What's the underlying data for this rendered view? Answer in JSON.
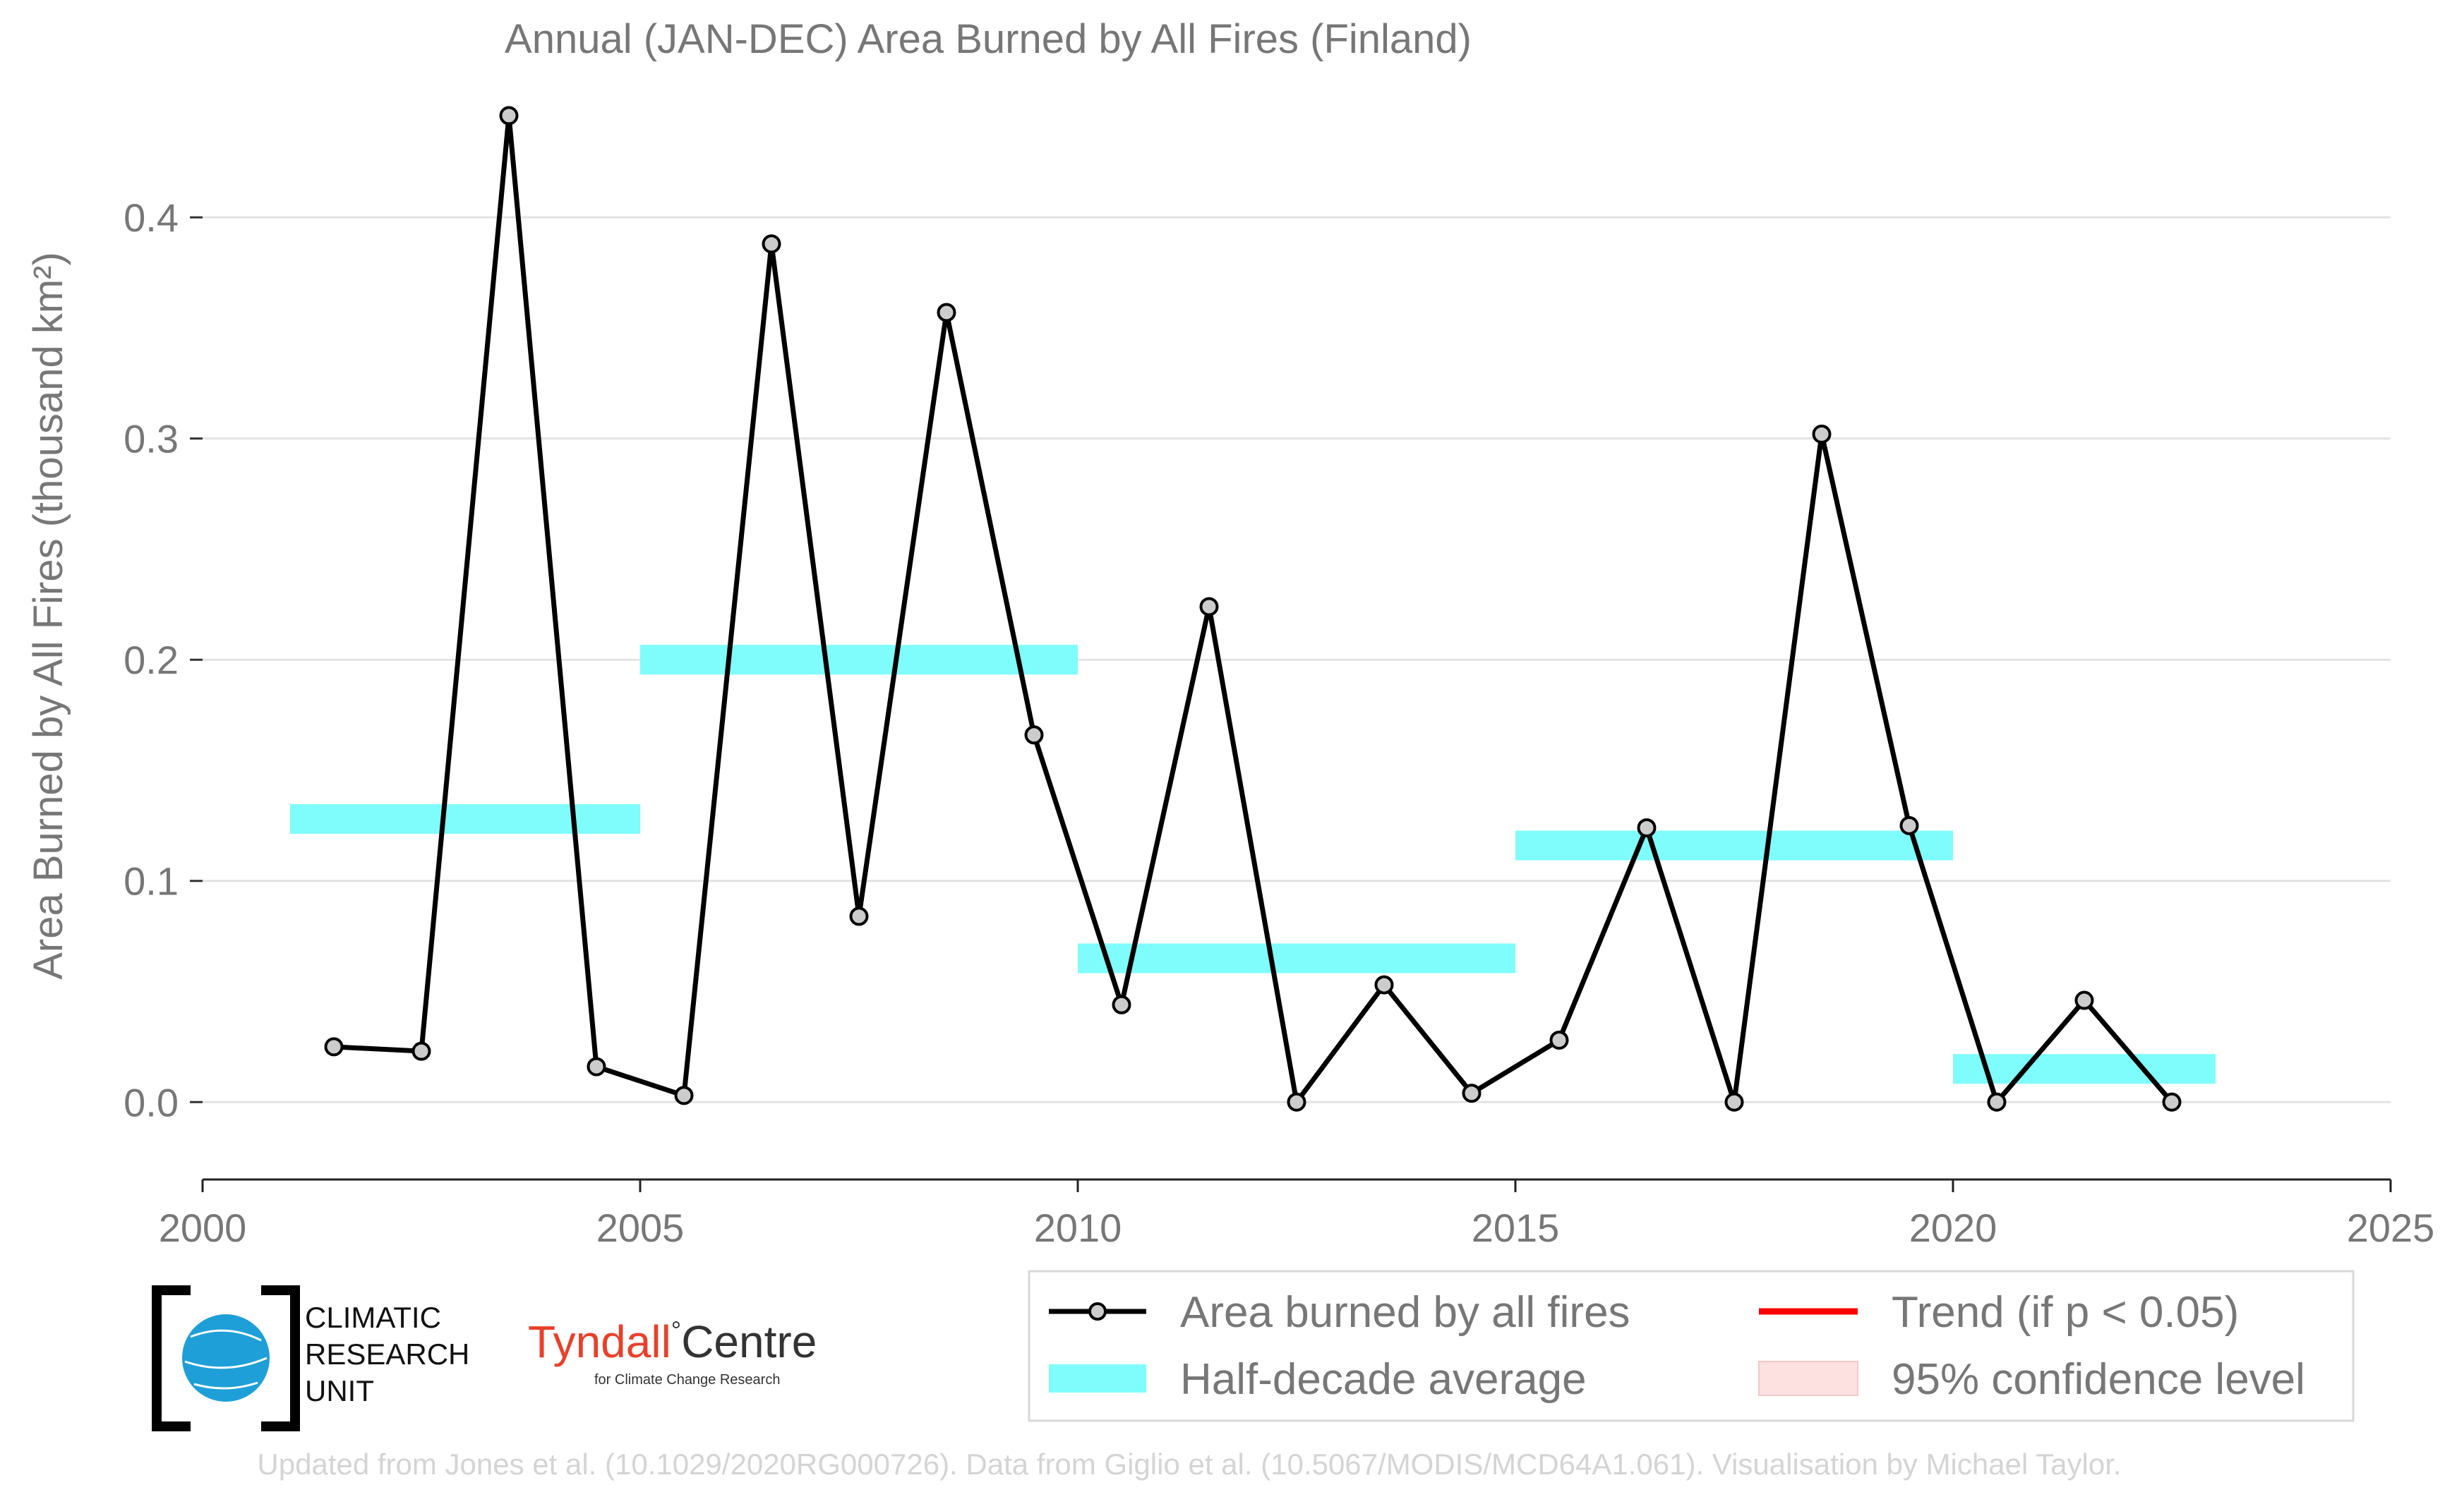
{
  "chart_data": {
    "type": "line",
    "title": "Annual (JAN-DEC) Area Burned by All Fires (Finland)",
    "ylabel": "Area Burned by All Fires (thousand km²)",
    "xlabel": "",
    "xlim": [
      2000,
      2025
    ],
    "ylim": [
      -0.035,
      0.46
    ],
    "x_ticks": [
      2000,
      2005,
      2010,
      2015,
      2020,
      2025
    ],
    "y_ticks": [
      0.0,
      0.1,
      0.2,
      0.3,
      0.4
    ],
    "x_tick_labels": [
      "2000",
      "2005",
      "2010",
      "2015",
      "2020",
      "2025"
    ],
    "y_tick_labels": [
      "0.0",
      "0.1",
      "0.2",
      "0.3",
      "0.4"
    ],
    "grid": "horizontal",
    "legend_position": "bottom-right",
    "series": [
      {
        "name": "Area burned by all fires",
        "type": "line",
        "color": "#000000",
        "x": [
          2001.5,
          2002.5,
          2003.5,
          2004.5,
          2005.5,
          2006.5,
          2007.5,
          2008.5,
          2009.5,
          2010.5,
          2011.5,
          2012.5,
          2013.5,
          2014.5,
          2015.5,
          2016.5,
          2017.5,
          2018.5,
          2019.5,
          2020.5,
          2021.5,
          2022.5
        ],
        "y": [
          0.025,
          0.023,
          0.446,
          0.016,
          0.003,
          0.388,
          0.084,
          0.357,
          0.166,
          0.044,
          0.224,
          0.0,
          0.053,
          0.004,
          0.028,
          0.124,
          0.0,
          0.302,
          0.125,
          0.0,
          0.046,
          0.0
        ]
      },
      {
        "name": "Half-decade average",
        "type": "segments",
        "color": "#7ffcfc",
        "segments": [
          {
            "x": [
              2001,
              2005
            ],
            "y": 0.128
          },
          {
            "x": [
              2005,
              2010
            ],
            "y": 0.2
          },
          {
            "x": [
              2010,
              2015
            ],
            "y": 0.065
          },
          {
            "x": [
              2015,
              2020
            ],
            "y": 0.116
          },
          {
            "x": [
              2020,
              2023
            ],
            "y": 0.015
          }
        ]
      },
      {
        "name": "Trend (if p < 0.05)",
        "type": "legend-only",
        "color": "#ff0000"
      },
      {
        "name": "95% confidence level",
        "type": "legend-only",
        "color": "#fde0e0"
      }
    ]
  },
  "legend": {
    "items": [
      {
        "label": "Area burned by all fires"
      },
      {
        "label": "Half-decade average"
      },
      {
        "label": "Trend (if p < 0.05)"
      },
      {
        "label": "95% confidence level"
      }
    ]
  },
  "logos": {
    "cru_lines": [
      "CLIMATIC",
      "RESEARCH",
      "UNIT"
    ],
    "tyndall_main": "Tyndall",
    "tyndall_degree": "°",
    "tyndall_centre": "Centre",
    "tyndall_sub": "for Climate Change Research"
  },
  "footer": "Updated from Jones et al. (10.1029/2020RG000726). Data from Giglio et al. (10.5067/MODIS/MCD64A1.061). Visualisation by Michael Taylor."
}
